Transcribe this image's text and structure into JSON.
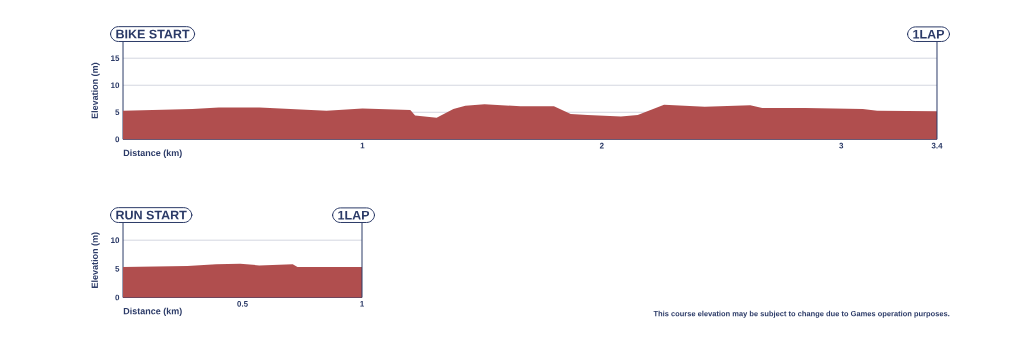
{
  "chart_data": [
    {
      "type": "area",
      "ylabel": "Elevation (m)",
      "xlabel": "Distance (km)",
      "annotations": [
        "BIKE START",
        "1LAP"
      ],
      "x": [
        0,
        0.29,
        0.4,
        0.57,
        0.85,
        1.0,
        1.2,
        1.22,
        1.31,
        1.38,
        1.43,
        1.51,
        1.66,
        1.8,
        1.87,
        1.94,
        2.08,
        2.15,
        2.26,
        2.43,
        2.62,
        2.67,
        2.85,
        3.09,
        3.15,
        3.4
      ],
      "values": [
        5.3,
        5.6,
        5.9,
        5.9,
        5.3,
        5.7,
        5.4,
        4.4,
        4.0,
        5.6,
        6.2,
        6.5,
        6.1,
        6.1,
        4.7,
        4.5,
        4.2,
        4.5,
        6.4,
        6.0,
        6.3,
        5.8,
        5.8,
        5.6,
        5.3,
        5.2
      ],
      "color": "#b04e4e",
      "xlim": [
        0,
        3.4
      ],
      "ylim": [
        0,
        18
      ],
      "xticks": [
        1,
        2,
        3,
        3.4
      ],
      "yticks": [
        0,
        5,
        10,
        15
      ],
      "grid": "y"
    },
    {
      "type": "area",
      "ylabel": "Elevation (m)",
      "xlabel": "Distance (km)",
      "annotations": [
        "RUN START",
        "1LAP",
        "This course elevation may be subject to change due to Games operation purposes."
      ],
      "x": [
        0,
        0.27,
        0.39,
        0.49,
        0.57,
        0.71,
        0.73,
        1.0
      ],
      "values": [
        5.3,
        5.5,
        5.8,
        5.9,
        5.6,
        5.8,
        5.3,
        5.3
      ],
      "color": "#b04e4e",
      "xlim": [
        0,
        1
      ],
      "ylim": [
        0,
        13
      ],
      "xticks": [
        0.5,
        1
      ],
      "yticks": [
        0,
        5,
        10
      ],
      "grid": "y"
    }
  ]
}
